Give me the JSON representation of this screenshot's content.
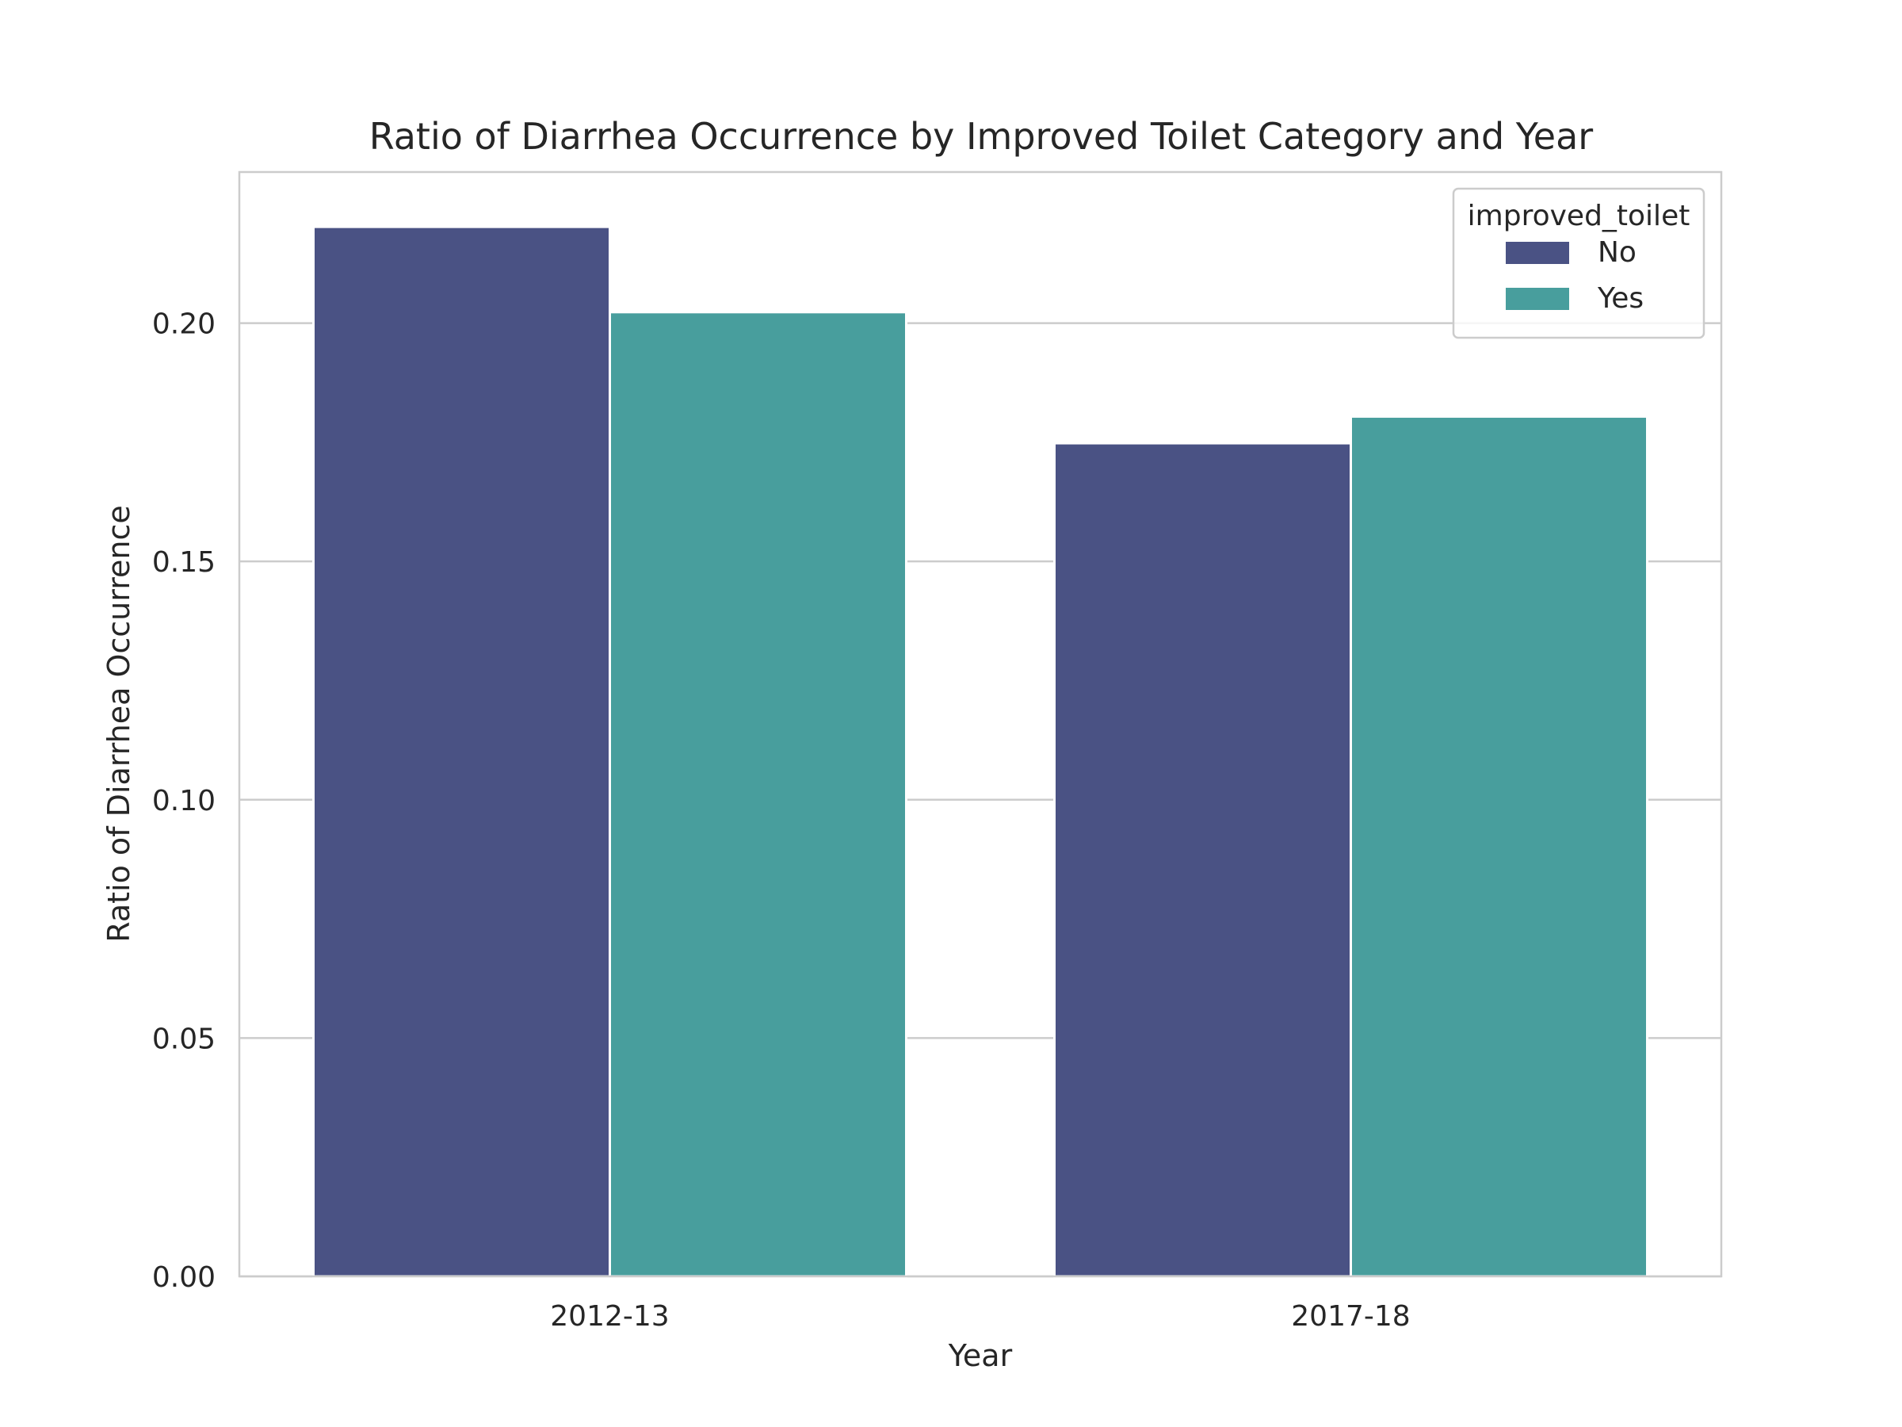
{
  "chart_data": {
    "type": "bar",
    "title": "Ratio of Diarrhea Occurrence by Improved Toilet Category and Year",
    "xlabel": "Year",
    "ylabel": "Ratio of Diarrhea Occurrence",
    "categories": [
      "2012-13",
      "2017-18"
    ],
    "series": [
      {
        "name": "No",
        "values": [
          0.2202,
          0.1748
        ],
        "color": "#4a5284"
      },
      {
        "name": "Yes",
        "values": [
          0.2023,
          0.1804
        ],
        "color": "#489e9d"
      }
    ],
    "yticks": [
      0.0,
      0.05,
      0.1,
      0.15,
      0.2
    ],
    "ytick_labels": [
      "0.00",
      "0.05",
      "0.10",
      "0.15",
      "0.20"
    ],
    "ylim": [
      0,
      0.2317
    ],
    "grid": true,
    "legend": {
      "title": "improved_toilet",
      "placement": "top-right"
    },
    "colors": {
      "grid": "#cccccc",
      "frame": "#cccccc",
      "text": "#262626"
    }
  }
}
